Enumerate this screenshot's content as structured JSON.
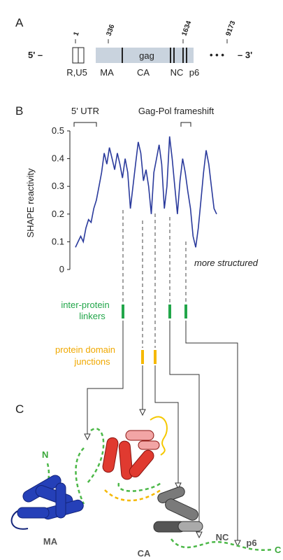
{
  "panel_a": {
    "label": "A",
    "positions": [
      "1",
      "336",
      "1634",
      "9173"
    ],
    "five_prime": "5' –",
    "gene": "gag",
    "dots": "• • •",
    "three_prime": "– 3'",
    "regions": [
      "R,U5",
      "MA",
      "CA",
      "NC",
      "p6"
    ]
  },
  "chart_data": {
    "type": "line",
    "panel": "B",
    "brackets": [
      "5' UTR",
      "Gag-Pol frameshift"
    ],
    "ylabel": "SHAPE reactivity",
    "annotation": "more structured",
    "color": "#2a3a9c",
    "values": [
      0.08,
      0.1,
      0.12,
      0.1,
      0.15,
      0.18,
      0.17,
      0.22,
      0.25,
      0.3,
      0.35,
      0.42,
      0.38,
      0.44,
      0.4,
      0.36,
      0.42,
      0.38,
      0.33,
      0.4,
      0.35,
      0.22,
      0.3,
      0.38,
      0.46,
      0.42,
      0.32,
      0.36,
      0.3,
      0.2,
      0.35,
      0.4,
      0.45,
      0.38,
      0.22,
      0.3,
      0.48,
      0.4,
      0.3,
      0.2,
      0.32,
      0.4,
      0.35,
      0.28,
      0.22,
      0.12,
      0.08,
      0.15,
      0.25,
      0.35,
      0.43,
      0.38,
      0.3,
      0.22,
      0.2
    ],
    "ylim": [
      0,
      0.5
    ],
    "yticks": [
      0,
      0.1,
      0.2,
      0.3,
      0.4,
      0.5
    ]
  },
  "legend": {
    "linkers": [
      "inter-protein",
      "linkers"
    ],
    "junctions": [
      "protein domain",
      "junctions"
    ]
  },
  "panel_c": {
    "label": "C",
    "labels": [
      "N",
      "MA",
      "CA",
      "NC",
      "p6",
      "C"
    ]
  }
}
